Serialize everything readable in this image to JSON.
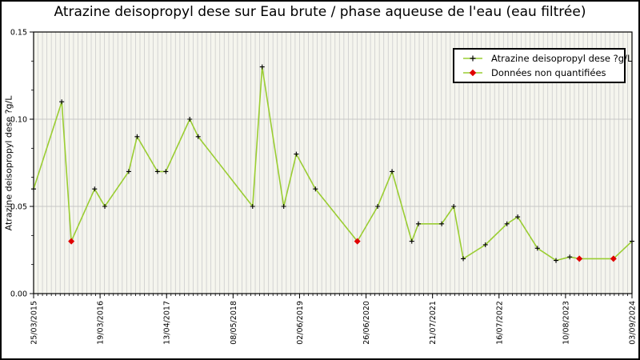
{
  "title": "Atrazine deisopropyl dese sur Eau brute / phase aqueuse de l'eau (eau filtrée)",
  "legend": {
    "series_label": "Atrazine deisopropyl dese ?g/L",
    "unquantified_label": "Données non quantifiées"
  },
  "colors": {
    "line": "#9acd32",
    "quantified_marker": "#000000",
    "unquantified_marker": "#e00000",
    "plot_bg": "#f5f5ee",
    "grid_vertical": "#cccccc",
    "grid_horizontal": "#c6c6c6",
    "axis": "#000000",
    "text": "#000000"
  },
  "chart_data": {
    "type": "line",
    "title": "Atrazine deisopropyl dese sur Eau brute / phase aqueuse de l'eau (eau filtrée)",
    "xlabel": "",
    "ylabel": "Atrazine deisopropyl dese ?g/L",
    "ylim": [
      0,
      0.15
    ],
    "yticks": [
      {
        "value": 0.0,
        "label": "0.00"
      },
      {
        "value": 0.05,
        "label": "0.05"
      },
      {
        "value": 0.1,
        "label": "0.10"
      },
      {
        "value": 0.15,
        "label": "0.15"
      }
    ],
    "xticks": [
      "25/03/2015",
      "19/03/2016",
      "13/04/2017",
      "08/05/2018",
      "02/06/2019",
      "26/06/2020",
      "21/07/2021",
      "16/07/2022",
      "10/08/2023",
      "03/09/2024"
    ],
    "grid": {
      "horizontal_at": [
        0.05,
        0.1
      ],
      "x_minor_divisions": 135,
      "y_minor_per_major": 2
    },
    "legend_position": "top-right",
    "series": [
      {
        "name": "Atrazine deisopropyl dese ?g/L",
        "points": [
          {
            "x_frac": 0.0,
            "value": 0.06,
            "quantified": true
          },
          {
            "x_frac": 0.047,
            "value": 0.11,
            "quantified": true
          },
          {
            "x_frac": 0.063,
            "value": 0.03,
            "quantified": false
          },
          {
            "x_frac": 0.102,
            "value": 0.06,
            "quantified": true
          },
          {
            "x_frac": 0.119,
            "value": 0.05,
            "quantified": true
          },
          {
            "x_frac": 0.159,
            "value": 0.07,
            "quantified": true
          },
          {
            "x_frac": 0.173,
            "value": 0.09,
            "quantified": true
          },
          {
            "x_frac": 0.207,
            "value": 0.07,
            "quantified": true
          },
          {
            "x_frac": 0.221,
            "value": 0.07,
            "quantified": true
          },
          {
            "x_frac": 0.261,
            "value": 0.1,
            "quantified": true
          },
          {
            "x_frac": 0.275,
            "value": 0.09,
            "quantified": true
          },
          {
            "x_frac": 0.366,
            "value": 0.05,
            "quantified": true
          },
          {
            "x_frac": 0.382,
            "value": 0.13,
            "quantified": true
          },
          {
            "x_frac": 0.418,
            "value": 0.05,
            "quantified": true
          },
          {
            "x_frac": 0.439,
            "value": 0.08,
            "quantified": true
          },
          {
            "x_frac": 0.471,
            "value": 0.06,
            "quantified": true
          },
          {
            "x_frac": 0.541,
            "value": 0.03,
            "quantified": false
          },
          {
            "x_frac": 0.575,
            "value": 0.05,
            "quantified": true
          },
          {
            "x_frac": 0.599,
            "value": 0.07,
            "quantified": true
          },
          {
            "x_frac": 0.632,
            "value": 0.03,
            "quantified": true
          },
          {
            "x_frac": 0.643,
            "value": 0.04,
            "quantified": true
          },
          {
            "x_frac": 0.682,
            "value": 0.04,
            "quantified": true
          },
          {
            "x_frac": 0.702,
            "value": 0.05,
            "quantified": true
          },
          {
            "x_frac": 0.718,
            "value": 0.02,
            "quantified": true
          },
          {
            "x_frac": 0.755,
            "value": 0.028,
            "quantified": true
          },
          {
            "x_frac": 0.791,
            "value": 0.04,
            "quantified": true
          },
          {
            "x_frac": 0.809,
            "value": 0.044,
            "quantified": true
          },
          {
            "x_frac": 0.842,
            "value": 0.026,
            "quantified": true
          },
          {
            "x_frac": 0.873,
            "value": 0.019,
            "quantified": true
          },
          {
            "x_frac": 0.896,
            "value": 0.021,
            "quantified": true
          },
          {
            "x_frac": 0.912,
            "value": 0.02,
            "quantified": false
          },
          {
            "x_frac": 0.969,
            "value": 0.02,
            "quantified": false
          },
          {
            "x_frac": 1.0,
            "value": 0.03,
            "quantified": true
          }
        ]
      }
    ]
  }
}
